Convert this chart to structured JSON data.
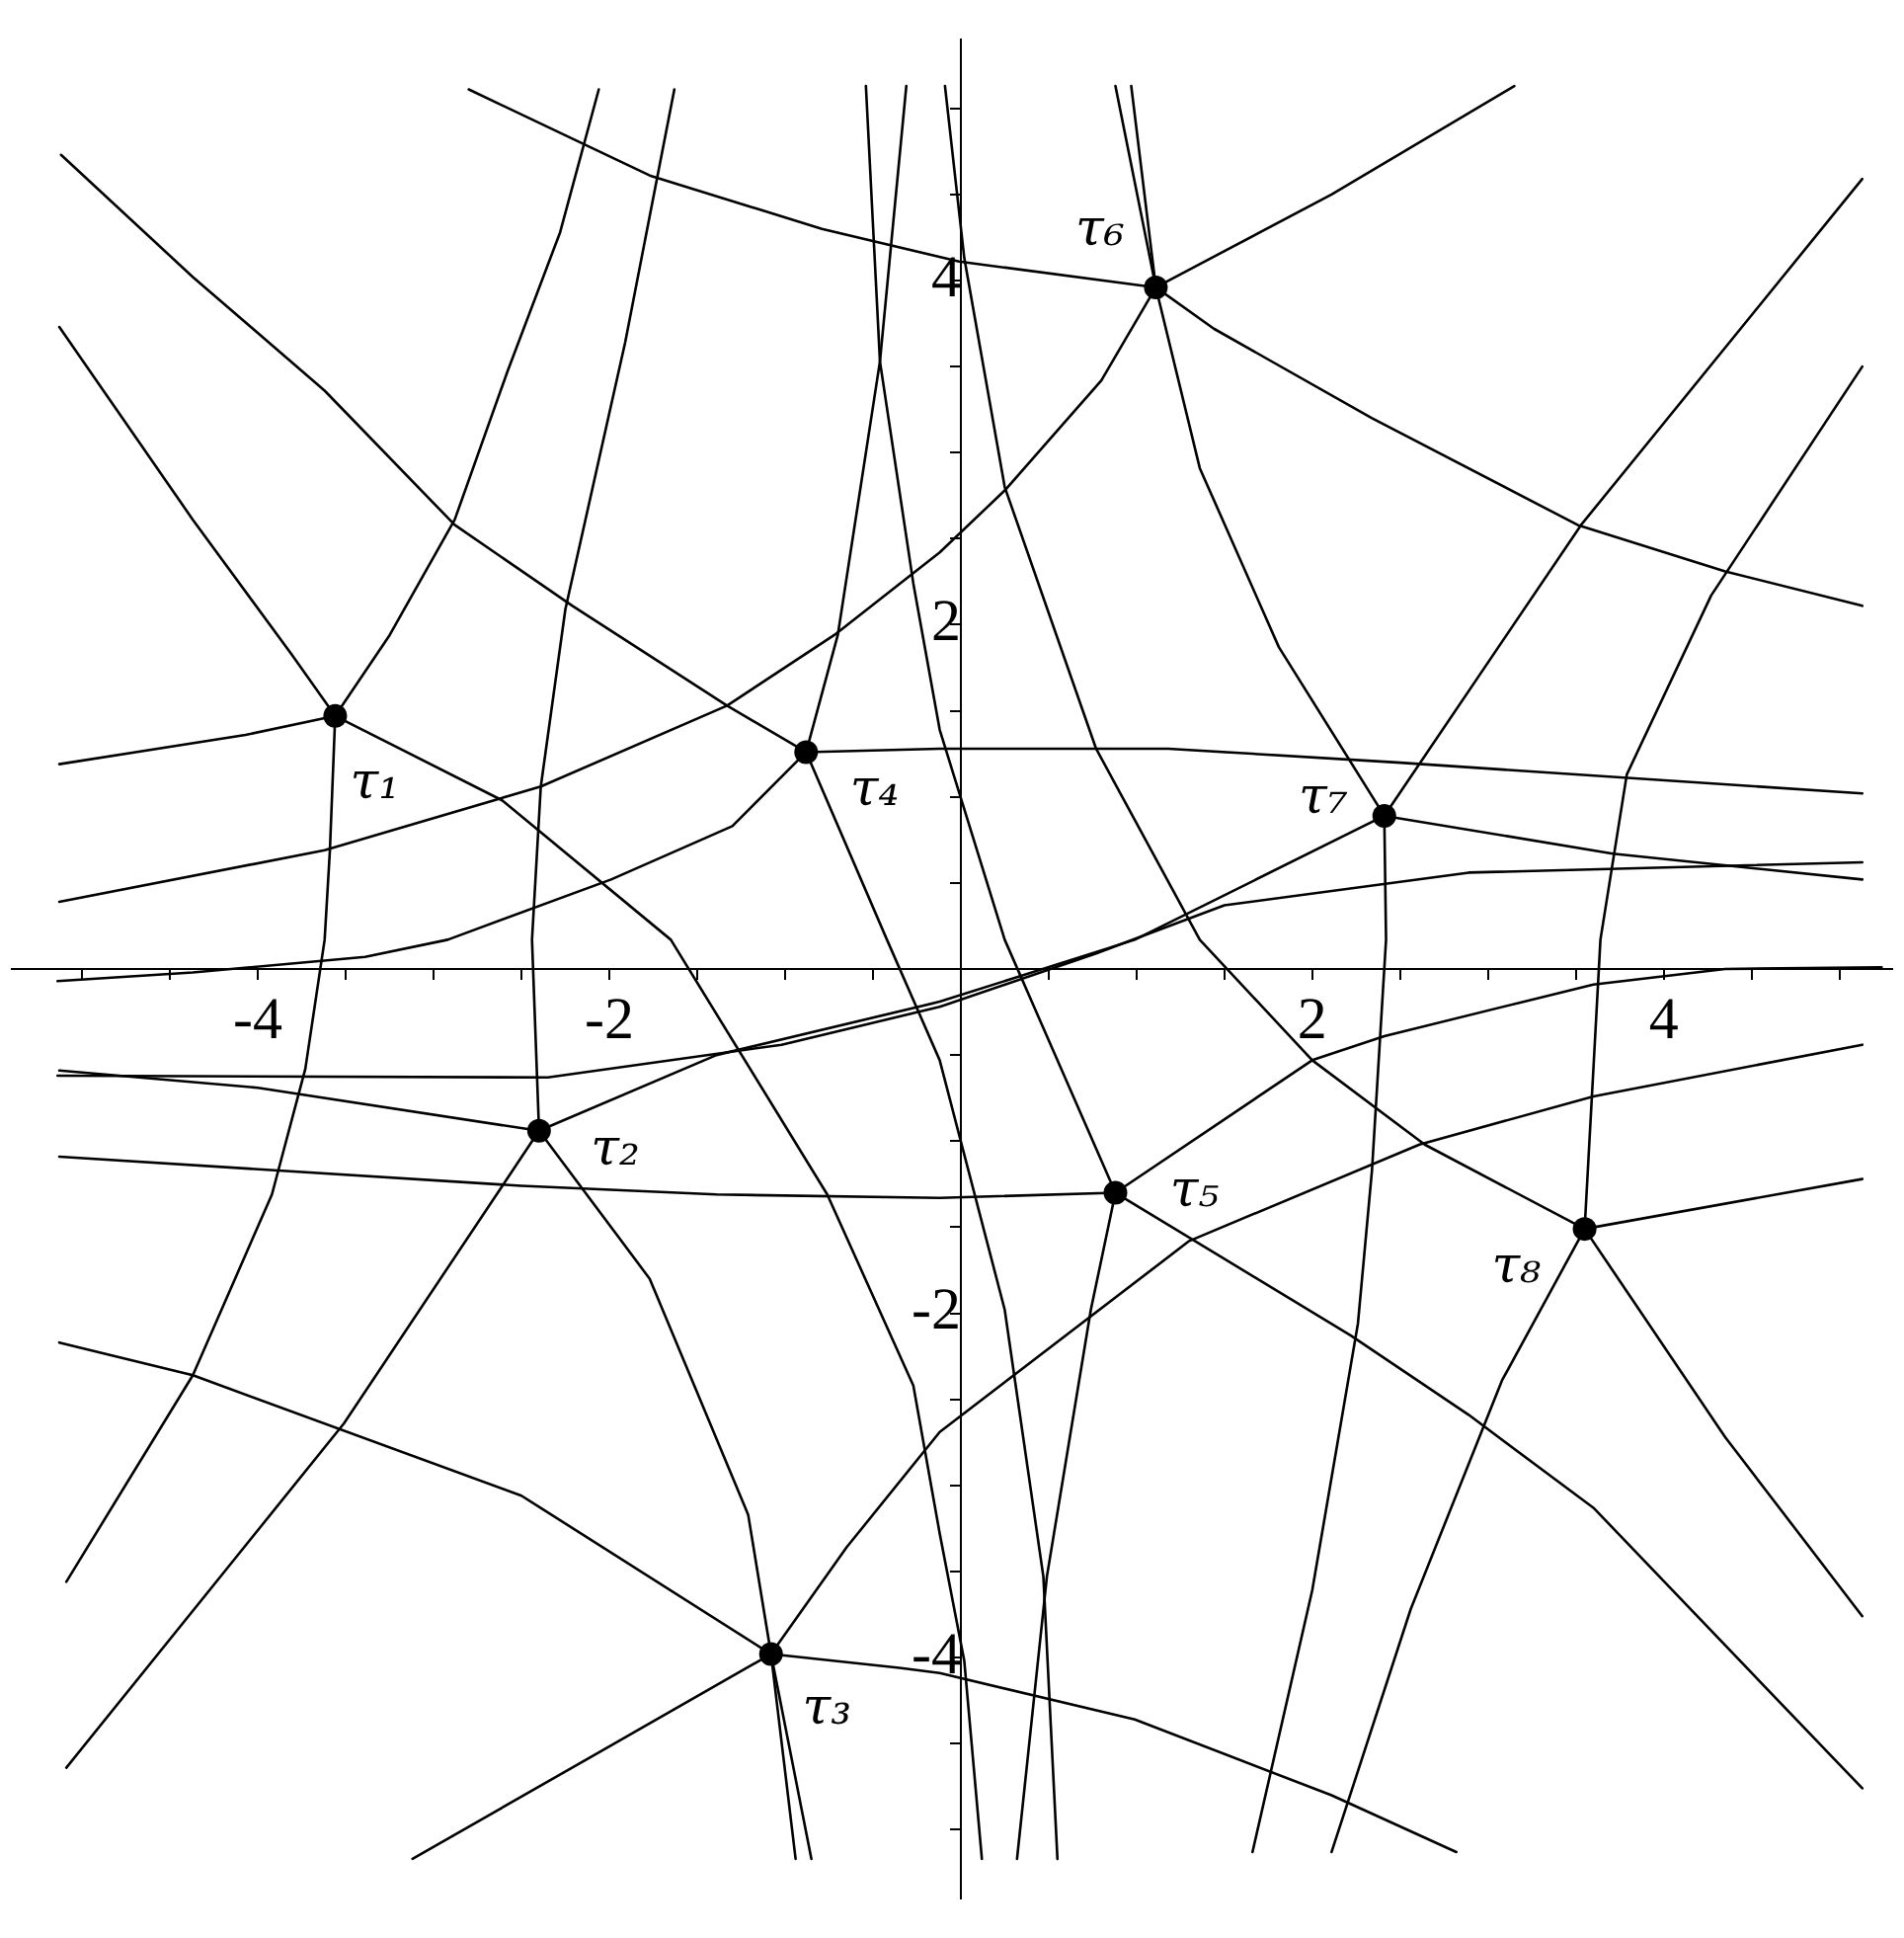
{
  "chart_data": {
    "type": "line",
    "xlim": [
      -5.4,
      5.3
    ],
    "ylim": [
      -5.4,
      5.4
    ],
    "xticks": [
      {
        "value": -5,
        "label": null
      },
      {
        "value": -4.5,
        "label": null
      },
      -4,
      {
        "value": -3.5,
        "label": null
      },
      {
        "value": -3,
        "label": null
      },
      {
        "value": -2.5,
        "label": null
      },
      -2,
      {
        "value": -1.5,
        "label": null
      },
      {
        "value": -1,
        "label": null
      },
      {
        "value": -0.5,
        "label": null
      },
      {
        "value": 0.5,
        "label": null
      },
      {
        "value": 1,
        "label": null
      },
      {
        "value": 1.5,
        "label": null
      },
      2,
      {
        "value": 2.5,
        "label": null
      },
      {
        "value": 3,
        "label": null
      },
      {
        "value": 3.5,
        "label": null
      },
      4,
      {
        "value": 4.5,
        "label": null
      },
      {
        "value": 5,
        "label": null
      }
    ],
    "yticks": [
      {
        "value": -5,
        "label": null
      },
      {
        "value": -4.5,
        "label": null
      },
      -4,
      {
        "value": -3.5,
        "label": null
      },
      {
        "value": -3,
        "label": null
      },
      {
        "value": -2.5,
        "label": null
      },
      -2,
      {
        "value": -1.5,
        "label": null
      },
      {
        "value": -1,
        "label": null
      },
      {
        "value": -0.5,
        "label": null
      },
      {
        "value": 0.5,
        "label": null
      },
      {
        "value": 1,
        "label": null
      },
      {
        "value": 1.5,
        "label": null
      },
      2,
      {
        "value": 2.5,
        "label": null
      },
      {
        "value": 3,
        "label": null
      },
      {
        "value": 3.5,
        "label": null
      },
      4,
      {
        "value": 4.5,
        "label": null
      },
      {
        "value": 5,
        "label": null
      }
    ],
    "series": [
      {
        "color": "#000000",
        "x": [
          -2.8,
          -1.77,
          -0.79,
          -0.01,
          1.11
        ],
        "values": [
          5.11,
          4.61,
          4.3,
          4.11,
          3.96
        ]
      },
      {
        "color": "#000000",
        "x": [
          1.11,
          2.11,
          3.15
        ],
        "values": [
          3.96,
          4.5,
          5.13
        ]
      },
      {
        "color": "#000000",
        "x": [
          1.11,
          1.44,
          2.34,
          3.51,
          4.35,
          5.13
        ],
        "values": [
          3.96,
          3.72,
          3.2,
          2.58,
          2.31,
          2.11
        ]
      },
      {
        "color": "#000000",
        "x": [
          1.11,
          0.8,
          0.25,
          -0.12,
          -0.72,
          -1.33,
          -2.39,
          -3.62,
          -5.13
        ],
        "values": [
          3.96,
          3.42,
          2.78,
          2.42,
          1.94,
          1.53,
          1.06,
          0.69,
          0.39
        ]
      },
      {
        "color": "#000000",
        "x": [
          1.11,
          1.36,
          1.81,
          2.41
        ],
        "values": [
          3.96,
          2.91,
          1.87,
          0.89
        ]
      },
      {
        "color": "#000000",
        "x": [
          0.88,
          1.11
        ],
        "values": [
          5.13,
          3.96
        ]
      },
      {
        "color": "#000000",
        "x": [
          0.97,
          1.11
        ],
        "values": [
          5.13,
          3.96
        ]
      },
      {
        "color": "#000000",
        "x": [
          -2.06,
          -2.28,
          -2.58,
          -2.88,
          -3.25,
          -3.56
        ],
        "values": [
          5.11,
          4.28,
          3.47,
          2.61,
          1.94,
          1.47
        ]
      },
      {
        "color": "#000000",
        "x": [
          -1.63,
          -1.91,
          -2.25,
          -2.39,
          -2.44,
          -2.4
        ],
        "values": [
          5.11,
          3.64,
          2.09,
          1.06,
          0.17,
          -0.94
        ]
      },
      {
        "color": "#000000",
        "x": [
          -5.13,
          -4.37,
          -3.81,
          -3.56
        ],
        "values": [
          3.73,
          2.61,
          1.83,
          1.47
        ]
      },
      {
        "color": "#000000",
        "x": [
          -5.13,
          -4.07,
          -3.56
        ],
        "values": [
          1.19,
          1.36,
          1.47
        ]
      },
      {
        "color": "#000000",
        "x": [
          -3.56,
          -3.59,
          -3.62,
          -3.73,
          -3.92,
          -4.37,
          -5.09
        ],
        "values": [
          1.47,
          0.69,
          0.17,
          -0.58,
          -1.31,
          -2.36,
          -3.56
        ]
      },
      {
        "color": "#000000",
        "x": [
          -3.56,
          -2.61,
          -1.65,
          -0.76,
          -0.27,
          -0.12,
          0.02,
          0.12
        ],
        "values": [
          1.47,
          0.98,
          0.17,
          -1.31,
          -2.42,
          -3.28,
          -4.02,
          -5.17
        ]
      },
      {
        "color": "#000000",
        "x": [
          -5.12,
          -4.37,
          -3.62,
          -2.88,
          -2.21,
          -1.33,
          -0.88
        ],
        "values": [
          4.73,
          4.02,
          3.36,
          2.58,
          2.11,
          1.53,
          1.26
        ]
      },
      {
        "color": "#000000",
        "x": [
          -0.88,
          -1.3,
          -1.99,
          -2.92,
          -3.39,
          -4.37,
          -5.14
        ],
        "values": [
          1.26,
          0.83,
          0.52,
          0.17,
          0.07,
          -0.02,
          -0.07
        ]
      },
      {
        "color": "#000000",
        "x": [
          -0.88,
          -0.12,
          1.18,
          2.48,
          5.13
        ],
        "values": [
          1.26,
          1.28,
          1.28,
          1.2,
          1.02
        ]
      },
      {
        "color": "#000000",
        "x": [
          -0.31,
          -0.46,
          -0.7,
          -0.88
        ],
        "values": [
          5.13,
          3.53,
          1.94,
          1.26
        ]
      },
      {
        "color": "#000000",
        "x": [
          -0.88,
          -0.42,
          -0.12,
          0.25,
          0.47,
          0.55
        ],
        "values": [
          1.26,
          0.17,
          -0.53,
          -1.98,
          -3.53,
          -5.17
        ]
      },
      {
        "color": "#000000",
        "x": [
          -0.54,
          -0.46,
          -0.27,
          -0.12,
          0.25,
          0.88
        ],
        "values": [
          5.13,
          3.53,
          2.24,
          1.39,
          0.17,
          -1.3
        ]
      },
      {
        "color": "#000000",
        "x": [
          -0.09,
          0.02,
          0.25,
          0.77,
          1.36,
          2.0,
          2.64,
          3.55
        ],
        "values": [
          5.13,
          4.13,
          2.8,
          1.28,
          0.17,
          -0.53,
          -1.02,
          -1.51
        ]
      },
      {
        "color": "#000000",
        "x": [
          2.41,
          3.53,
          5.13
        ],
        "values": [
          0.89,
          2.58,
          4.59
        ]
      },
      {
        "color": "#000000",
        "x": [
          -2.4,
          -1.39,
          -0.12,
          0.99,
          2.41
        ],
        "values": [
          -0.94,
          -0.5,
          -0.19,
          0.17,
          0.89
        ]
      },
      {
        "color": "#000000",
        "x": [
          -5.14,
          -2.35,
          -1.02,
          -0.12,
          0.77,
          1.5,
          2.89,
          5.13
        ],
        "values": [
          -0.62,
          -0.63,
          -0.44,
          -0.22,
          0.09,
          0.37,
          0.56,
          0.62
        ]
      },
      {
        "color": "#000000",
        "x": [
          2.41,
          3.71,
          5.13
        ],
        "values": [
          0.89,
          0.67,
          0.52
        ]
      },
      {
        "color": "#000000",
        "x": [
          2.41,
          2.42,
          2.34,
          2.26,
          2.0,
          1.66
        ],
        "values": [
          0.89,
          0.17,
          -1.17,
          -2.06,
          -3.61,
          -5.13
        ]
      },
      {
        "color": "#000000",
        "x": [
          0.88,
          2.0,
          2.41,
          3.6,
          4.35,
          5.24
        ],
        "values": [
          -1.3,
          -0.53,
          -0.39,
          -0.09,
          0,
          0.01
        ]
      },
      {
        "color": "#000000",
        "x": [
          -5.13,
          -2.5,
          -1.39,
          -0.12,
          0.88
        ],
        "values": [
          -1.09,
          -1.26,
          -1.31,
          -1.33,
          -1.3
        ]
      },
      {
        "color": "#000000",
        "x": [
          0.88,
          0.74,
          0.49,
          0.32
        ],
        "values": [
          -1.3,
          -1.98,
          -3.53,
          -5.17
        ]
      },
      {
        "color": "#000000",
        "x": [
          0.88,
          2.22,
          2.89,
          3.6,
          5.13
        ],
        "values": [
          -1.3,
          -2.13,
          -2.59,
          -3.13,
          -4.76
        ]
      },
      {
        "color": "#000000",
        "x": [
          -1.08,
          -0.65,
          -0.12,
          1.3,
          2.61,
          3.6,
          5.13
        ],
        "values": [
          -3.98,
          -3.36,
          -2.69,
          -1.58,
          -1.02,
          -0.74,
          -0.44
        ]
      },
      {
        "color": "#000000",
        "x": [
          3.55,
          5.13
        ],
        "values": [
          -1.51,
          -1.22
        ]
      },
      {
        "color": "#000000",
        "x": [
          3.55,
          4.35,
          5.13
        ],
        "values": [
          -1.51,
          -2.72,
          -3.76
        ]
      },
      {
        "color": "#000000",
        "x": [
          3.55,
          3.08,
          2.56,
          2.11
        ],
        "values": [
          -1.51,
          -2.39,
          -3.72,
          -5.13
        ]
      },
      {
        "color": "#000000",
        "x": [
          3.55,
          3.6,
          3.64,
          3.79,
          4.27,
          5.13
        ],
        "values": [
          -1.51,
          -0.58,
          0.17,
          1.13,
          2.17,
          3.5
        ]
      },
      {
        "color": "#000000",
        "x": [
          -1.08,
          -0.35,
          -0.12,
          0.99,
          2.11,
          2.82
        ],
        "values": [
          -3.98,
          -4.06,
          -4.09,
          -4.36,
          -4.8,
          -5.13
        ]
      },
      {
        "color": "#000000",
        "x": [
          -2.4,
          -3.51,
          -5.09
        ],
        "values": [
          -0.94,
          -2.64,
          -4.64
        ]
      },
      {
        "color": "#000000",
        "x": [
          -2.4,
          -1.77,
          -1.21,
          -1.08,
          -0.94
        ],
        "values": [
          -0.94,
          -1.8,
          -3.17,
          -3.98,
          -5.17
        ]
      },
      {
        "color": "#000000",
        "x": [
          -1.08,
          -0.85
        ],
        "values": [
          -3.98,
          -5.17
        ]
      },
      {
        "color": "#000000",
        "x": [
          -1.08,
          -2.5,
          -4.37,
          -5.13
        ],
        "values": [
          -3.98,
          -3.06,
          -2.36,
          -2.17
        ]
      },
      {
        "color": "#000000",
        "x": [
          -1.08,
          -3.12
        ],
        "values": [
          -3.98,
          -5.17
        ]
      },
      {
        "color": "#000000",
        "x": [
          -2.4,
          -4.0,
          -5.13
        ],
        "values": [
          -0.94,
          -0.69,
          -0.59
        ]
      },
      {
        "type": "scatter",
        "marker": "circle",
        "color": "#000000",
        "x": [
          -3.56,
          -2.4,
          -1.08,
          -0.88,
          0.88,
          1.11,
          2.41,
          3.55
        ],
        "values": [
          1.47,
          -0.94,
          -3.98,
          1.26,
          -1.3,
          3.96,
          0.89,
          -1.51
        ]
      }
    ],
    "annotations": [
      {
        "text": "τ₁",
        "x": -3.56,
        "y": 1.47
      },
      {
        "text": "τ₂",
        "x": -2.4,
        "y": -0.94
      },
      {
        "text": "τ₃",
        "x": -1.08,
        "y": -3.98
      },
      {
        "text": "τ₄",
        "x": -0.88,
        "y": 1.26
      },
      {
        "text": "τ₅",
        "x": 0.88,
        "y": -1.3
      },
      {
        "text": "τ₆",
        "x": 1.11,
        "y": 3.96
      },
      {
        "text": "τ₇",
        "x": 2.41,
        "y": 0.89
      },
      {
        "text": "τ₈",
        "x": 3.55,
        "y": -1.51
      }
    ]
  }
}
